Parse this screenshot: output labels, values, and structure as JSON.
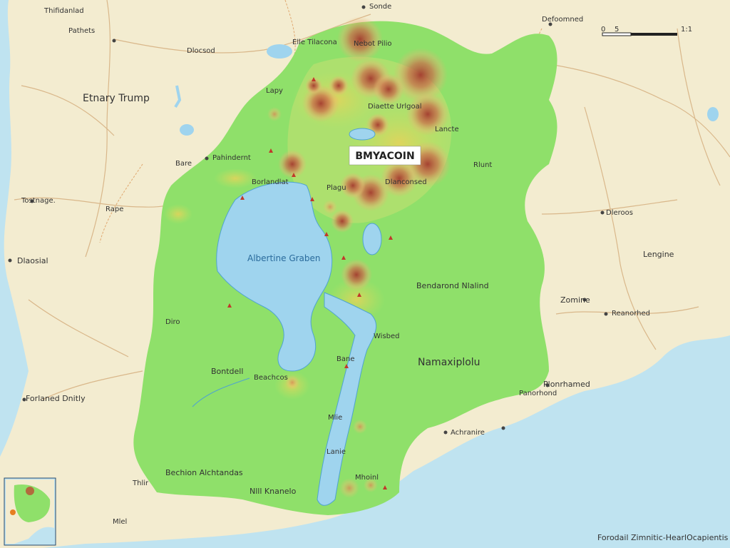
{
  "map": {
    "colors": {
      "sea": "#bfe3f0",
      "land": "#f3ecd0",
      "basin": "#8fe06a",
      "lake": "#9fd4ee",
      "heat": "#b4422f",
      "road": "#d9b78a",
      "border": "#e0b07a"
    },
    "scale_bar": {
      "ticks": [
        "0",
        "5"
      ],
      "end_label": "1:1"
    },
    "central_label": "BMYACOIN",
    "lake_label": "Albertine Graben",
    "region_label": "Namaxiplolu",
    "legend_text": "Forodail Zimnitic-HearlOcapientis",
    "labels": {
      "t1": "Thifidanlad",
      "t2": "Sonde",
      "t3": "Defoomned",
      "t4": "Pathets",
      "t5": "Dlocsod",
      "t6": "Elle Tilacona",
      "t7": "Nebot Pilio",
      "t8": "Etnary Trump",
      "t9": "Lapy",
      "t10": "Diaette Urlgoal",
      "t11": "Pahindernt",
      "t12": "Lancte",
      "t13": "Bare",
      "t14": "Tostnage.",
      "t15": "Rape",
      "t16": "Rlunt",
      "t17": "Borlandlat",
      "t18": "Plagu",
      "t19": "Dlanconsed",
      "t20": "Bendarond Nlalind",
      "t21": "Dleroos",
      "t22": "Lengine",
      "t23": "Zomine",
      "t24": "Reanorhed",
      "t25": "Dlaosial",
      "t26": "Diro",
      "t27": "Bontdell",
      "t28": "Beachcos",
      "t29": "Bane",
      "t30": "Wisbed",
      "t31": "Plonrhamed",
      "t32": "Forlaned Dnitly",
      "t33": "Mlie",
      "t34": "Panorhond",
      "t35": "Achranire",
      "t36": "Lanie",
      "t37": "Bechion Alchtandas",
      "t38": "Thlir",
      "t39": "Nlll Knanelo",
      "t40": "Mlel",
      "t41": "Mhoinl"
    }
  }
}
